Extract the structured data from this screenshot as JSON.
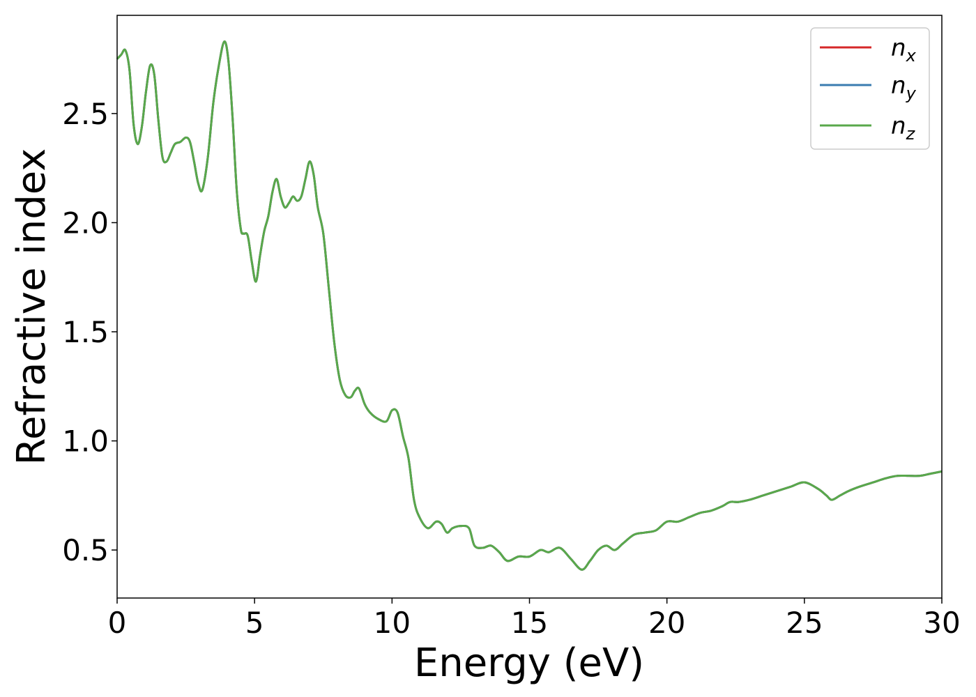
{
  "chart_data": {
    "type": "line",
    "title": "",
    "xlabel": "Energy (eV)",
    "ylabel": "Refractive index",
    "xlim": [
      0,
      30
    ],
    "ylim": [
      0.28,
      2.95
    ],
    "xticks": [
      0,
      5,
      10,
      15,
      20,
      25,
      30
    ],
    "xtick_labels": [
      "0",
      "5",
      "10",
      "15",
      "20",
      "25",
      "30"
    ],
    "yticks": [
      0.5,
      1.0,
      1.5,
      2.0,
      2.5
    ],
    "ytick_labels": [
      "0.5",
      "1.0",
      "1.5",
      "2.0",
      "2.5"
    ],
    "grid": false,
    "legend": "top-right",
    "series": [
      {
        "name": "n_x",
        "label_main": "n",
        "label_sub": "x",
        "color": "#d62728",
        "x": [
          0,
          0.15,
          0.3,
          0.45,
          0.6,
          0.75,
          0.9,
          1.05,
          1.2,
          1.35,
          1.5,
          1.65,
          1.8,
          1.95,
          2.1,
          2.3,
          2.5,
          2.65,
          2.8,
          2.95,
          3.1,
          3.3,
          3.5,
          3.7,
          3.9,
          4.05,
          4.2,
          4.35,
          4.5,
          4.6,
          4.75,
          4.9,
          5.05,
          5.2,
          5.35,
          5.5,
          5.65,
          5.8,
          5.95,
          6.1,
          6.25,
          6.4,
          6.55,
          6.7,
          6.85,
          7.0,
          7.15,
          7.3,
          7.5,
          7.7,
          7.9,
          8.1,
          8.3,
          8.5,
          8.65,
          8.8,
          9.0,
          9.2,
          9.5,
          9.8,
          10.0,
          10.2,
          10.4,
          10.6,
          10.8,
          11.0,
          11.3,
          11.6,
          11.8,
          12.0,
          12.2,
          12.5,
          12.8,
          13.0,
          13.3,
          13.6,
          13.9,
          14.2,
          14.6,
          15.0,
          15.4,
          15.7,
          16.1,
          16.5,
          16.9,
          17.2,
          17.5,
          17.8,
          18.1,
          18.4,
          18.8,
          19.2,
          19.6,
          20.0,
          20.4,
          20.8,
          21.2,
          21.6,
          22.0,
          22.3,
          22.6,
          23.0,
          23.5,
          24.0,
          24.5,
          25.0,
          25.5,
          25.8,
          26.0,
          26.3,
          26.6,
          27.0,
          27.5,
          28.0,
          28.4,
          28.8,
          29.2,
          29.6,
          30.0
        ],
        "y": [
          2.75,
          2.77,
          2.79,
          2.7,
          2.45,
          2.36,
          2.44,
          2.6,
          2.72,
          2.68,
          2.47,
          2.3,
          2.28,
          2.32,
          2.36,
          2.37,
          2.39,
          2.37,
          2.28,
          2.18,
          2.15,
          2.3,
          2.55,
          2.72,
          2.83,
          2.74,
          2.48,
          2.15,
          1.97,
          1.95,
          1.94,
          1.82,
          1.73,
          1.85,
          1.96,
          2.03,
          2.14,
          2.2,
          2.12,
          2.07,
          2.09,
          2.12,
          2.1,
          2.12,
          2.2,
          2.28,
          2.22,
          2.07,
          1.95,
          1.7,
          1.45,
          1.28,
          1.21,
          1.2,
          1.23,
          1.24,
          1.17,
          1.13,
          1.1,
          1.09,
          1.14,
          1.13,
          1.02,
          0.92,
          0.73,
          0.65,
          0.6,
          0.63,
          0.62,
          0.58,
          0.6,
          0.61,
          0.6,
          0.52,
          0.51,
          0.52,
          0.49,
          0.45,
          0.47,
          0.47,
          0.5,
          0.49,
          0.51,
          0.46,
          0.41,
          0.45,
          0.5,
          0.52,
          0.5,
          0.53,
          0.57,
          0.58,
          0.59,
          0.63,
          0.63,
          0.65,
          0.67,
          0.68,
          0.7,
          0.72,
          0.72,
          0.73,
          0.75,
          0.77,
          0.79,
          0.81,
          0.78,
          0.75,
          0.73,
          0.75,
          0.77,
          0.79,
          0.81,
          0.83,
          0.84,
          0.84,
          0.84,
          0.85,
          0.86
        ]
      },
      {
        "name": "n_y",
        "label_main": "n",
        "label_sub": "y",
        "color": "#3a7cb0",
        "x": [
          0,
          0.15,
          0.3,
          0.45,
          0.6,
          0.75,
          0.9,
          1.05,
          1.2,
          1.35,
          1.5,
          1.65,
          1.8,
          1.95,
          2.1,
          2.3,
          2.5,
          2.65,
          2.8,
          2.95,
          3.1,
          3.3,
          3.5,
          3.7,
          3.9,
          4.05,
          4.2,
          4.35,
          4.5,
          4.6,
          4.75,
          4.9,
          5.05,
          5.2,
          5.35,
          5.5,
          5.65,
          5.8,
          5.95,
          6.1,
          6.25,
          6.4,
          6.55,
          6.7,
          6.85,
          7.0,
          7.15,
          7.3,
          7.5,
          7.7,
          7.9,
          8.1,
          8.3,
          8.5,
          8.65,
          8.8,
          9.0,
          9.2,
          9.5,
          9.8,
          10.0,
          10.2,
          10.4,
          10.6,
          10.8,
          11.0,
          11.3,
          11.6,
          11.8,
          12.0,
          12.2,
          12.5,
          12.8,
          13.0,
          13.3,
          13.6,
          13.9,
          14.2,
          14.6,
          15.0,
          15.4,
          15.7,
          16.1,
          16.5,
          16.9,
          17.2,
          17.5,
          17.8,
          18.1,
          18.4,
          18.8,
          19.2,
          19.6,
          20.0,
          20.4,
          20.8,
          21.2,
          21.6,
          22.0,
          22.3,
          22.6,
          23.0,
          23.5,
          24.0,
          24.5,
          25.0,
          25.5,
          25.8,
          26.0,
          26.3,
          26.6,
          27.0,
          27.5,
          28.0,
          28.4,
          28.8,
          29.2,
          29.6,
          30.0
        ],
        "y": [
          2.75,
          2.77,
          2.79,
          2.7,
          2.45,
          2.36,
          2.44,
          2.6,
          2.72,
          2.68,
          2.47,
          2.3,
          2.28,
          2.32,
          2.36,
          2.37,
          2.39,
          2.37,
          2.28,
          2.18,
          2.15,
          2.3,
          2.55,
          2.72,
          2.83,
          2.74,
          2.48,
          2.15,
          1.97,
          1.95,
          1.94,
          1.82,
          1.73,
          1.85,
          1.96,
          2.03,
          2.14,
          2.2,
          2.12,
          2.07,
          2.09,
          2.12,
          2.1,
          2.12,
          2.2,
          2.28,
          2.22,
          2.07,
          1.95,
          1.7,
          1.45,
          1.28,
          1.21,
          1.2,
          1.23,
          1.24,
          1.17,
          1.13,
          1.1,
          1.09,
          1.14,
          1.13,
          1.02,
          0.92,
          0.73,
          0.65,
          0.6,
          0.63,
          0.62,
          0.58,
          0.6,
          0.61,
          0.6,
          0.52,
          0.51,
          0.52,
          0.49,
          0.45,
          0.47,
          0.47,
          0.5,
          0.49,
          0.51,
          0.46,
          0.41,
          0.45,
          0.5,
          0.52,
          0.5,
          0.53,
          0.57,
          0.58,
          0.59,
          0.63,
          0.63,
          0.65,
          0.67,
          0.68,
          0.7,
          0.72,
          0.72,
          0.73,
          0.75,
          0.77,
          0.79,
          0.81,
          0.78,
          0.75,
          0.73,
          0.75,
          0.77,
          0.79,
          0.81,
          0.83,
          0.84,
          0.84,
          0.84,
          0.85,
          0.86
        ]
      },
      {
        "name": "n_z",
        "label_main": "n",
        "label_sub": "z",
        "color": "#59a84b",
        "x": [
          0,
          0.15,
          0.3,
          0.45,
          0.6,
          0.75,
          0.9,
          1.05,
          1.2,
          1.35,
          1.5,
          1.65,
          1.8,
          1.95,
          2.1,
          2.3,
          2.5,
          2.65,
          2.8,
          2.95,
          3.1,
          3.3,
          3.5,
          3.7,
          3.9,
          4.05,
          4.2,
          4.35,
          4.5,
          4.6,
          4.75,
          4.9,
          5.05,
          5.2,
          5.35,
          5.5,
          5.65,
          5.8,
          5.95,
          6.1,
          6.25,
          6.4,
          6.55,
          6.7,
          6.85,
          7.0,
          7.15,
          7.3,
          7.5,
          7.7,
          7.9,
          8.1,
          8.3,
          8.5,
          8.65,
          8.8,
          9.0,
          9.2,
          9.5,
          9.8,
          10.0,
          10.2,
          10.4,
          10.6,
          10.8,
          11.0,
          11.3,
          11.6,
          11.8,
          12.0,
          12.2,
          12.5,
          12.8,
          13.0,
          13.3,
          13.6,
          13.9,
          14.2,
          14.6,
          15.0,
          15.4,
          15.7,
          16.1,
          16.5,
          16.9,
          17.2,
          17.5,
          17.8,
          18.1,
          18.4,
          18.8,
          19.2,
          19.6,
          20.0,
          20.4,
          20.8,
          21.2,
          21.6,
          22.0,
          22.3,
          22.6,
          23.0,
          23.5,
          24.0,
          24.5,
          25.0,
          25.5,
          25.8,
          26.0,
          26.3,
          26.6,
          27.0,
          27.5,
          28.0,
          28.4,
          28.8,
          29.2,
          29.6,
          30.0
        ],
        "y": [
          2.75,
          2.77,
          2.79,
          2.7,
          2.45,
          2.36,
          2.44,
          2.6,
          2.72,
          2.68,
          2.47,
          2.3,
          2.28,
          2.32,
          2.36,
          2.37,
          2.39,
          2.37,
          2.28,
          2.18,
          2.15,
          2.3,
          2.55,
          2.72,
          2.83,
          2.74,
          2.48,
          2.15,
          1.97,
          1.95,
          1.94,
          1.82,
          1.73,
          1.85,
          1.96,
          2.03,
          2.14,
          2.2,
          2.12,
          2.07,
          2.09,
          2.12,
          2.1,
          2.12,
          2.2,
          2.28,
          2.22,
          2.07,
          1.95,
          1.7,
          1.45,
          1.28,
          1.21,
          1.2,
          1.23,
          1.24,
          1.17,
          1.13,
          1.1,
          1.09,
          1.14,
          1.13,
          1.02,
          0.92,
          0.73,
          0.65,
          0.6,
          0.63,
          0.62,
          0.58,
          0.6,
          0.61,
          0.6,
          0.52,
          0.51,
          0.52,
          0.49,
          0.45,
          0.47,
          0.47,
          0.5,
          0.49,
          0.51,
          0.46,
          0.41,
          0.45,
          0.5,
          0.52,
          0.5,
          0.53,
          0.57,
          0.58,
          0.59,
          0.63,
          0.63,
          0.65,
          0.67,
          0.68,
          0.7,
          0.72,
          0.72,
          0.73,
          0.75,
          0.77,
          0.79,
          0.81,
          0.78,
          0.75,
          0.73,
          0.75,
          0.77,
          0.79,
          0.81,
          0.83,
          0.84,
          0.84,
          0.84,
          0.85,
          0.86
        ]
      }
    ]
  }
}
